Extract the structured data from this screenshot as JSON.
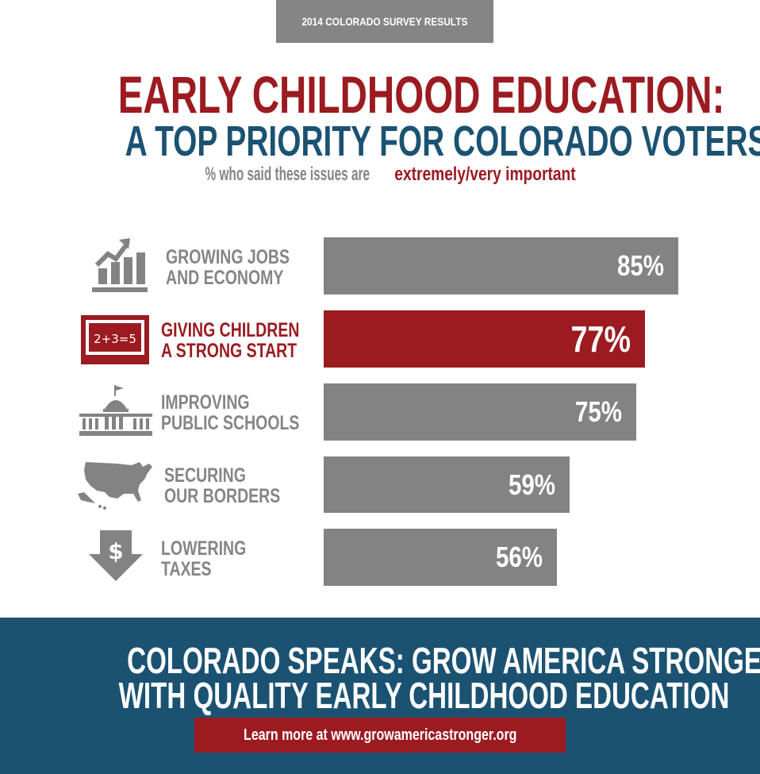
{
  "header": {
    "tag": "2014 COLORADO SURVEY RESULTS",
    "title_line1": "EARLY CHILDHOOD EDUCATION:",
    "title_line2": "A TOP PRIORITY FOR COLORADO VOTERS",
    "subtitle_prefix": "% who said these issues are",
    "subtitle_highlight": "extremely/very important"
  },
  "colors": {
    "red": "#9b1b21",
    "blue": "#1b5272",
    "gray": "#838383"
  },
  "chart_data": {
    "type": "bar",
    "orientation": "horizontal",
    "categories": [
      [
        "GROWING JOBS",
        "AND ECONOMY"
      ],
      [
        "GIVING CHILDREN",
        "A STRONG START"
      ],
      [
        "IMPROVING",
        "PUBLIC SCHOOLS"
      ],
      [
        "SECURING",
        "OUR BORDERS"
      ],
      [
        "LOWERING",
        "TAXES"
      ]
    ],
    "values": [
      85,
      77,
      75,
      59,
      56
    ],
    "value_labels": [
      "85%",
      "77%",
      "75%",
      "59%",
      "56%"
    ],
    "highlighted_index": 1,
    "icons": [
      "growth-chart-icon",
      "chalkboard-icon",
      "capitol-building-icon",
      "us-map-icon",
      "dollar-down-arrow-icon"
    ],
    "chalkboard_text": "2+3=5"
  },
  "footer": {
    "line1": "COLORADO SPEAKS: GROW AMERICA STRONGER",
    "line2": "WITH QUALITY EARLY CHILDHOOD EDUCATION",
    "cta": "Learn more at www.growamericastronger.org"
  }
}
